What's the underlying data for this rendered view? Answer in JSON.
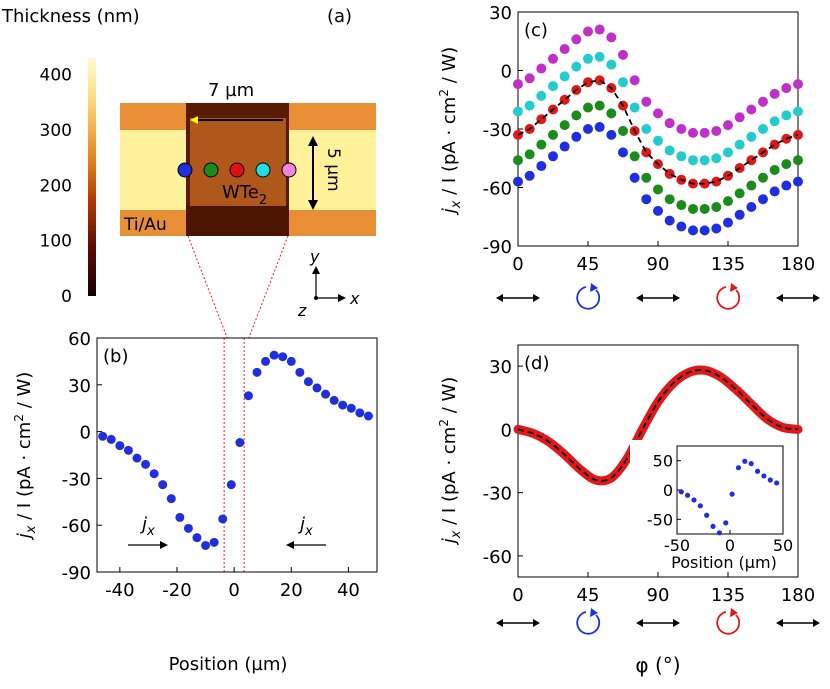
{
  "panel_a": {
    "label": "(a)",
    "colorbar_title": "Thickness (nm)",
    "colorbar_range": [
      0,
      430
    ],
    "colorbar_ticks": [
      "0",
      "100",
      "200",
      "300",
      "400"
    ],
    "width_label": "7 µm",
    "height_label": "5 µm",
    "material_label": "WTe",
    "material_sub": "2",
    "contact_label": "Ti/Au",
    "axis_y": "y",
    "axis_z": "z",
    "axis_x": "x",
    "dot_colors": [
      "#1f2fe0",
      "#1a8c1a",
      "#e01010",
      "#22dede",
      "#ee88dd"
    ],
    "colors": {
      "contact": "#fff9a6",
      "contact_mid": "#f2a848",
      "wte2": "#c86a22",
      "substrate": "#fffac0"
    }
  },
  "chart_data": [
    {
      "id": "b",
      "label": "(b)",
      "type": "scatter",
      "xlabel": "Position (µm)",
      "ylabel_main": "j",
      "ylabel_sub": "x",
      "ylabel_rest": " / I (pA · cm",
      "ylabel_sup": "2",
      "ylabel_end": " / W)",
      "xlim": [
        -48,
        50
      ],
      "ylim": [
        -90,
        60
      ],
      "xticks": [
        "-40",
        "-20",
        "0",
        "20",
        "40"
      ],
      "yticks": [
        "-90",
        "-60",
        "-30",
        "0",
        "30",
        "60"
      ],
      "annotation_left": "j",
      "annotation_left_sub": "x",
      "annotation_right": "j",
      "annotation_right_sub": "x",
      "color": "#1f2fe0",
      "x": [
        -46,
        -43,
        -40,
        -37,
        -34,
        -31,
        -28,
        -25,
        -22,
        -19,
        -16,
        -13,
        -10,
        -7,
        -4,
        -1,
        2,
        5,
        8,
        11,
        14,
        17,
        20,
        23,
        26,
        29,
        32,
        35,
        38,
        41,
        44,
        47
      ],
      "y": [
        -3,
        -5,
        -9,
        -12,
        -17,
        -21,
        -27,
        -34,
        -43,
        -55,
        -62,
        -68,
        -73,
        -71,
        -56,
        -34,
        -7,
        23,
        38,
        45,
        49,
        48,
        45,
        38,
        32,
        28,
        24,
        20,
        17,
        15,
        12,
        10
      ]
    },
    {
      "id": "c",
      "label": "(c)",
      "type": "scatter",
      "xlabel": "",
      "xlim": [
        0,
        180
      ],
      "ylim": [
        -90,
        30
      ],
      "xticks": [
        "0",
        "45",
        "90",
        "135",
        "180"
      ],
      "yticks": [
        "-90",
        "-60",
        "-30",
        "0",
        "30"
      ],
      "ylabel_main": "j",
      "ylabel_sub": "x",
      "ylabel_rest": " / I (pA · cm",
      "ylabel_sup": "2",
      "ylabel_end": " / W)",
      "x": [
        0,
        7.5,
        15,
        22.5,
        30,
        37.5,
        45,
        52.5,
        60,
        67.5,
        75,
        82.5,
        90,
        97.5,
        105,
        112.5,
        120,
        127.5,
        135,
        142.5,
        150,
        157.5,
        165,
        172.5,
        180
      ],
      "series": [
        {
          "color": "#c030c8",
          "values": [
            -7,
            -4,
            1,
            6,
            11,
            16,
            20,
            21,
            17,
            8,
            -5,
            -16,
            -22,
            -27,
            -30,
            -32,
            -32,
            -31,
            -28,
            -24,
            -20,
            -16,
            -12,
            -9,
            -7
          ]
        },
        {
          "color": "#22cccc",
          "values": [
            -21,
            -18,
            -13,
            -8,
            -3,
            2,
            6,
            7,
            3,
            -6,
            -19,
            -30,
            -36,
            -41,
            -44,
            -46,
            -46,
            -45,
            -42,
            -38,
            -34,
            -30,
            -26,
            -23,
            -21
          ]
        },
        {
          "color": "#e01818",
          "values": [
            -33,
            -30,
            -25,
            -20,
            -15,
            -10,
            -6,
            -5,
            -9,
            -18,
            -31,
            -42,
            -48,
            -53,
            -56,
            -58,
            -58,
            -57,
            -54,
            -50,
            -46,
            -42,
            -38,
            -35,
            -33
          ]
        },
        {
          "color": "#1a8c1a",
          "values": [
            -46,
            -43,
            -38,
            -33,
            -28,
            -23,
            -19,
            -18,
            -22,
            -31,
            -44,
            -55,
            -61,
            -66,
            -69,
            -71,
            -71,
            -70,
            -67,
            -63,
            -59,
            -55,
            -51,
            -48,
            -46
          ]
        },
        {
          "color": "#1f2fe0",
          "values": [
            -57,
            -54,
            -49,
            -44,
            -39,
            -34,
            -30,
            -29,
            -33,
            -42,
            -55,
            -66,
            -72,
            -77,
            -80,
            -82,
            -82,
            -81,
            -78,
            -74,
            -70,
            -66,
            -62,
            -59,
            -57
          ]
        }
      ],
      "fit_series": 2,
      "fit_color": "#000000",
      "polarization_icons": [
        "linear",
        "circular-left",
        "linear",
        "circular-right",
        "linear"
      ]
    },
    {
      "id": "d",
      "label": "(d)",
      "type": "line",
      "xlabel": "φ (°)",
      "xlim": [
        0,
        180
      ],
      "ylim": [
        -70,
        40
      ],
      "xticks": [
        "0",
        "45",
        "90",
        "135",
        "180"
      ],
      "yticks": [
        "-60",
        "-30",
        "0",
        "30"
      ],
      "ylabel_main": "j",
      "ylabel_sub": "x",
      "ylabel_rest": " / I (pA · cm",
      "ylabel_sup": "2",
      "ylabel_end": " / W)",
      "color": "#e01818",
      "fit_color": "#000000",
      "x": [
        0,
        10,
        20,
        30,
        40,
        50,
        60,
        70,
        80,
        90,
        100,
        110,
        120,
        130,
        140,
        150,
        160,
        170,
        180
      ],
      "y": [
        0,
        -2,
        -6,
        -12,
        -19,
        -24,
        -23,
        -14,
        0,
        13,
        22,
        27,
        28,
        25,
        19,
        12,
        5,
        1,
        0
      ],
      "polarization_icons": [
        "linear",
        "circular-left",
        "linear",
        "circular-right",
        "linear"
      ],
      "inset": {
        "type": "scatter",
        "xlabel": "Position (µm)",
        "xlim": [
          -50,
          50
        ],
        "ylim": [
          -75,
          75
        ],
        "xticks": [
          "-50",
          "0",
          "50"
        ],
        "yticks": [
          "-50",
          "0",
          "50"
        ],
        "color": "#1f2fe0",
        "x": [
          -46,
          -40,
          -34,
          -28,
          -22,
          -16,
          -10,
          -4,
          2,
          8,
          14,
          20,
          26,
          32,
          38,
          44
        ],
        "y": [
          -3,
          -9,
          -17,
          -27,
          -43,
          -62,
          -73,
          -56,
          -7,
          38,
          49,
          45,
          32,
          24,
          17,
          12
        ]
      }
    }
  ]
}
